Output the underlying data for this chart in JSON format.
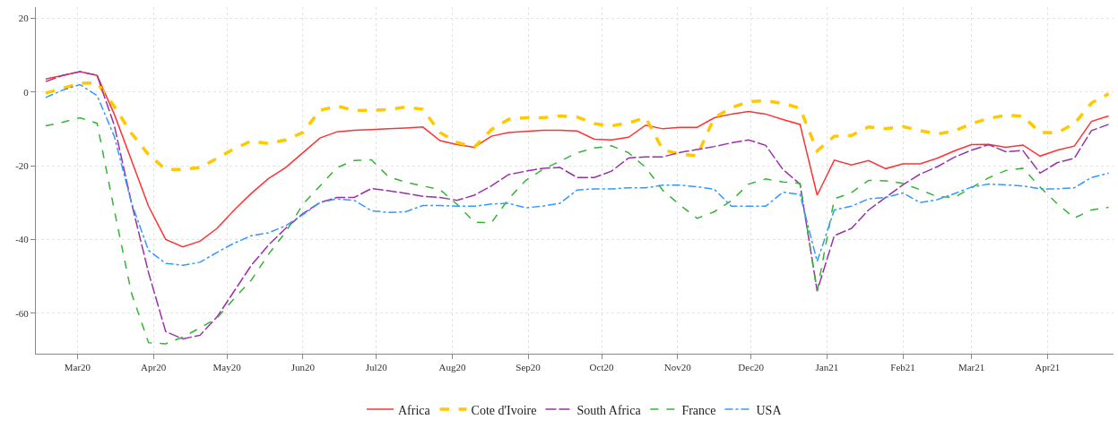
{
  "chart_data": {
    "type": "line",
    "x": [
      "2020-02-17",
      "2020-02-24",
      "2020-03-02",
      "2020-03-09",
      "2020-03-16",
      "2020-03-23",
      "2020-03-30",
      "2020-04-06",
      "2020-04-13",
      "2020-04-20",
      "2020-04-27",
      "2020-05-04",
      "2020-05-11",
      "2020-05-18",
      "2020-05-25",
      "2020-06-01",
      "2020-06-08",
      "2020-06-15",
      "2020-06-22",
      "2020-06-29",
      "2020-07-06",
      "2020-07-13",
      "2020-07-20",
      "2020-07-27",
      "2020-08-03",
      "2020-08-10",
      "2020-08-17",
      "2020-08-24",
      "2020-08-31",
      "2020-09-07",
      "2020-09-14",
      "2020-09-21",
      "2020-09-28",
      "2020-10-05",
      "2020-10-12",
      "2020-10-19",
      "2020-10-26",
      "2020-11-02",
      "2020-11-09",
      "2020-11-16",
      "2020-11-23",
      "2020-11-30",
      "2020-12-07",
      "2020-12-14",
      "2020-12-21",
      "2020-12-28",
      "2021-01-04",
      "2021-01-11",
      "2021-01-18",
      "2021-01-25",
      "2021-02-01",
      "2021-02-08",
      "2021-02-15",
      "2021-02-22",
      "2021-03-01",
      "2021-03-08",
      "2021-03-15",
      "2021-03-22",
      "2021-03-29",
      "2021-04-05",
      "2021-04-12",
      "2021-04-19",
      "2021-04-26"
    ],
    "series": [
      {
        "name": "Africa",
        "color": "#ff3333",
        "line_style": "solid",
        "values": [
          3.5,
          4.5,
          5.5,
          4.5,
          -6,
          -18.5,
          -31,
          -40,
          -42,
          -40.5,
          -37,
          -32,
          -27.5,
          -23.5,
          -20.5,
          -16.5,
          -12.5,
          -10.8,
          -10.4,
          -10.2,
          -10,
          -9.8,
          -9.5,
          -13.2,
          -14.3,
          -15,
          -12,
          -11,
          -10.7,
          -10.4,
          -10.4,
          -10.6,
          -12.8,
          -13,
          -12.3,
          -9,
          -10,
          -9.6,
          -9.6,
          -7,
          -6,
          -5.3,
          -6,
          -7.5,
          -8.8,
          -28,
          -18.5,
          -19.8,
          -18.6,
          -20.8,
          -19.5,
          -19.5,
          -18,
          -16,
          -14.3,
          -14.2,
          -15,
          -14.4,
          -17.4,
          -15.8,
          -14.7,
          -8,
          -6.5
        ]
      },
      {
        "name": "Cote d'Ivoire",
        "color": "#ffc800",
        "line_style": "dashed",
        "values": [
          -0.3,
          1,
          2.3,
          2.5,
          -3.9,
          -11.2,
          -17,
          -21,
          -21,
          -20.5,
          -18,
          -15.4,
          -13.3,
          -14,
          -13,
          -11,
          -5,
          -3.8,
          -5,
          -5,
          -4.8,
          -4.1,
          -4.7,
          -11,
          -13.7,
          -15,
          -10.2,
          -7.4,
          -7,
          -7,
          -6.5,
          -6.8,
          -8.6,
          -9.2,
          -8.4,
          -7,
          -15.7,
          -16.9,
          -17.3,
          -7,
          -4.3,
          -2.6,
          -2.4,
          -3.1,
          -4.4,
          -16,
          -12,
          -11.8,
          -9.5,
          -10,
          -9.4,
          -10.5,
          -11.4,
          -10.6,
          -8.6,
          -7.2,
          -6.3,
          -6.6,
          -11,
          -11.1,
          -8.6,
          -3,
          -0.5
        ]
      },
      {
        "name": "South Africa",
        "color": "#9b30a8",
        "line_style": "longdash",
        "values": [
          2.8,
          4.5,
          5.5,
          4.5,
          -9,
          -30,
          -49,
          -65,
          -67,
          -66,
          -61,
          -54,
          -47,
          -41.5,
          -37,
          -33,
          -30,
          -28.6,
          -28.6,
          -26.2,
          -26.8,
          -27.5,
          -28.3,
          -28.6,
          -29.4,
          -28,
          -25.5,
          -22.4,
          -21.5,
          -20.7,
          -20.5,
          -23.2,
          -23.2,
          -21.5,
          -17.9,
          -17.6,
          -17.6,
          -16.4,
          -15.6,
          -14.8,
          -13.8,
          -13,
          -14.5,
          -21,
          -25,
          -54,
          -39,
          -37,
          -32,
          -28.6,
          -25.2,
          -22.3,
          -20.3,
          -17.7,
          -15.8,
          -14.3,
          -16.2,
          -15.9,
          -22,
          -19.2,
          -18,
          -10.5,
          -8.8
        ]
      },
      {
        "name": "France",
        "color": "#33b533",
        "line_style": "dashed",
        "values": [
          -9.2,
          -8.2,
          -7,
          -8.5,
          -32,
          -54.5,
          -68,
          -68.3,
          -66.5,
          -64,
          -61.3,
          -56,
          -51,
          -44,
          -38,
          -30.5,
          -25.5,
          -20.5,
          -18.6,
          -18.4,
          -23,
          -24.5,
          -25.5,
          -26.5,
          -30.5,
          -35.3,
          -35.5,
          -29,
          -24,
          -21,
          -18.8,
          -16.5,
          -15.2,
          -14.6,
          -16.5,
          -20.5,
          -26.7,
          -30.7,
          -34.3,
          -32.5,
          -29.5,
          -25,
          -23.6,
          -24.4,
          -24.8,
          -54,
          -29,
          -27.3,
          -24,
          -24.1,
          -24.8,
          -26.5,
          -28.4,
          -28.6,
          -26,
          -23.3,
          -21.3,
          -20.7,
          -25.8,
          -30.3,
          -34.2,
          -32,
          -31.3
        ]
      },
      {
        "name": "USA",
        "color": "#3399ff",
        "line_style": "dashdot",
        "values": [
          -1.5,
          0.5,
          2,
          -1,
          -12,
          -30,
          -43,
          -46.5,
          -47,
          -46.2,
          -43.5,
          -41,
          -39,
          -38.2,
          -36.3,
          -33.3,
          -30,
          -29,
          -29.4,
          -32.2,
          -32.7,
          -32.5,
          -30.8,
          -30.8,
          -31,
          -31,
          -30.4,
          -30.2,
          -31.4,
          -31,
          -30.2,
          -26.6,
          -26.3,
          -26.3,
          -26,
          -26,
          -25.3,
          -25.3,
          -25.7,
          -26.4,
          -31,
          -31,
          -31,
          -27.2,
          -27.8,
          -46,
          -32,
          -31,
          -29,
          -28.6,
          -27.4,
          -30,
          -29.2,
          -27.6,
          -25.8,
          -25,
          -25.2,
          -25.5,
          -26.3,
          -26.3,
          -26,
          -23.2,
          -22
        ]
      }
    ],
    "xlim": [
      "2020-02-13",
      "2021-04-28"
    ],
    "xticks": [
      {
        "value": "2020-03-01",
        "label": "Mar20"
      },
      {
        "value": "2020-04-01",
        "label": "Apr20"
      },
      {
        "value": "2020-05-01",
        "label": "May20"
      },
      {
        "value": "2020-06-01",
        "label": "Jun20"
      },
      {
        "value": "2020-07-01",
        "label": "Jul20"
      },
      {
        "value": "2020-08-01",
        "label": "Aug20"
      },
      {
        "value": "2020-09-01",
        "label": "Sep20"
      },
      {
        "value": "2020-10-01",
        "label": "Oct20"
      },
      {
        "value": "2020-11-01",
        "label": "Nov20"
      },
      {
        "value": "2020-12-01",
        "label": "Dec20"
      },
      {
        "value": "2021-01-01",
        "label": "Jan21"
      },
      {
        "value": "2021-02-01",
        "label": "Feb21"
      },
      {
        "value": "2021-03-01",
        "label": "Mar21"
      },
      {
        "value": "2021-04-01",
        "label": "Apr21"
      }
    ],
    "ylim": [
      -71,
      23
    ],
    "yticks": [
      -60,
      -40,
      -20,
      0,
      20
    ],
    "grid": true,
    "legend": "bottom",
    "marker": "none"
  }
}
